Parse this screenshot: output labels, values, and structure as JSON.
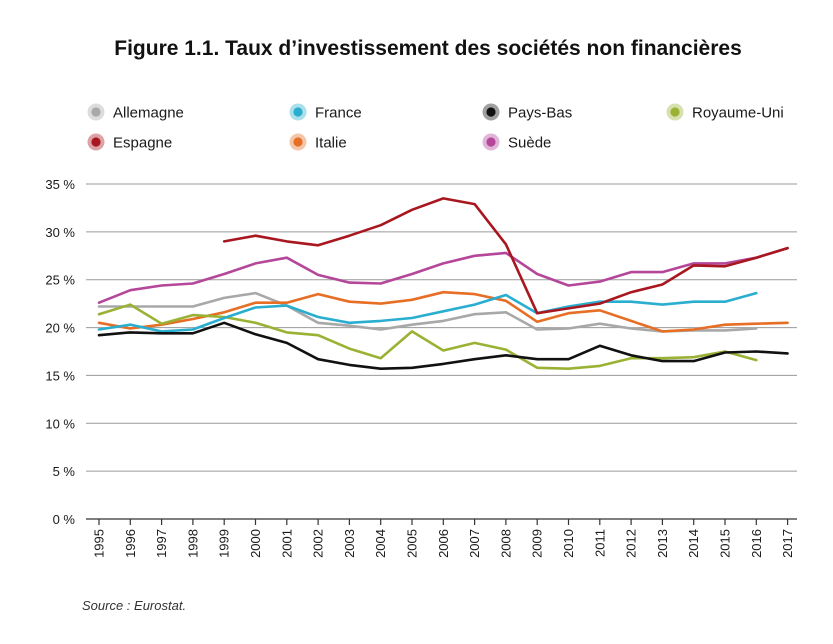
{
  "chart_data": {
    "type": "line",
    "title": "Figure 1.1. Taux d’investissement des sociétés non financières",
    "source": "Source : Eurostat.",
    "x": [
      1995,
      1996,
      1997,
      1998,
      1999,
      2000,
      2001,
      2002,
      2003,
      2004,
      2005,
      2006,
      2007,
      2008,
      2009,
      2010,
      2011,
      2012,
      2013,
      2014,
      2015,
      2016,
      2017
    ],
    "x_labels": [
      "1995",
      "1996",
      "1997",
      "1998",
      "1999",
      "2000",
      "2001",
      "2002",
      "2003",
      "2004",
      "2005",
      "2006",
      "2007",
      "2008",
      "2009",
      "2010",
      "2011",
      "2012",
      "2013",
      "2014",
      "2015",
      "2016",
      "2017"
    ],
    "ylim": [
      0,
      35
    ],
    "y_ticks": [
      0,
      5,
      10,
      15,
      20,
      25,
      30,
      35
    ],
    "y_tick_labels": [
      "0 %",
      "5 %",
      "10 %",
      "15 %",
      "20 %",
      "25 %",
      "30 %",
      "35 %"
    ],
    "grid": true,
    "legend_position": "top",
    "series": [
      {
        "name": "Allemagne",
        "color": "#a8a8a8",
        "values": [
          22.2,
          22.2,
          22.2,
          22.2,
          23.1,
          23.6,
          22.3,
          20.5,
          20.2,
          19.8,
          20.3,
          20.7,
          21.4,
          21.6,
          19.8,
          19.9,
          20.4,
          19.9,
          19.6,
          19.7,
          19.7,
          19.9,
          null
        ]
      },
      {
        "name": "France",
        "color": "#2aaed0",
        "values": [
          19.8,
          20.3,
          19.6,
          19.8,
          21.0,
          22.1,
          22.3,
          21.1,
          20.5,
          20.7,
          21.0,
          21.7,
          22.4,
          23.4,
          21.5,
          22.2,
          22.7,
          22.7,
          22.4,
          22.7,
          22.7,
          23.6,
          null
        ]
      },
      {
        "name": "Pays-Bas",
        "color": "#111111",
        "values": [
          19.2,
          19.5,
          19.4,
          19.4,
          20.5,
          19.3,
          18.4,
          16.7,
          16.1,
          15.7,
          15.8,
          16.2,
          16.7,
          17.1,
          16.7,
          16.7,
          18.1,
          17.1,
          16.5,
          16.5,
          17.4,
          17.5,
          17.3
        ]
      },
      {
        "name": "Royaume-Uni",
        "color": "#9ab234",
        "values": [
          21.4,
          22.4,
          20.4,
          21.3,
          21.1,
          20.5,
          19.5,
          19.2,
          17.8,
          16.8,
          19.6,
          17.6,
          18.4,
          17.7,
          15.8,
          15.7,
          16.0,
          16.8,
          16.8,
          16.9,
          17.5,
          16.6,
          null
        ]
      },
      {
        "name": "Espagne",
        "color": "#a8171f",
        "values": [
          null,
          null,
          null,
          null,
          29.0,
          29.6,
          29.0,
          28.6,
          29.6,
          30.7,
          32.3,
          33.5,
          32.9,
          28.7,
          21.5,
          22.0,
          22.5,
          23.7,
          24.5,
          26.5,
          26.4,
          27.3,
          28.3
        ]
      },
      {
        "name": "Italie",
        "color": "#e66e25",
        "values": [
          20.5,
          19.9,
          20.3,
          20.9,
          21.6,
          22.6,
          22.6,
          23.5,
          22.7,
          22.5,
          22.9,
          23.7,
          23.5,
          22.8,
          20.6,
          21.5,
          21.8,
          20.7,
          19.6,
          19.8,
          20.3,
          20.4,
          20.5
        ]
      },
      {
        "name": "Suède",
        "color": "#b4479a",
        "values": [
          22.6,
          23.9,
          24.4,
          24.6,
          25.6,
          26.7,
          27.3,
          25.5,
          24.7,
          24.6,
          25.6,
          26.7,
          27.5,
          27.8,
          25.6,
          24.4,
          24.8,
          25.8,
          25.8,
          26.7,
          26.7,
          27.3,
          28.3
        ]
      }
    ]
  }
}
